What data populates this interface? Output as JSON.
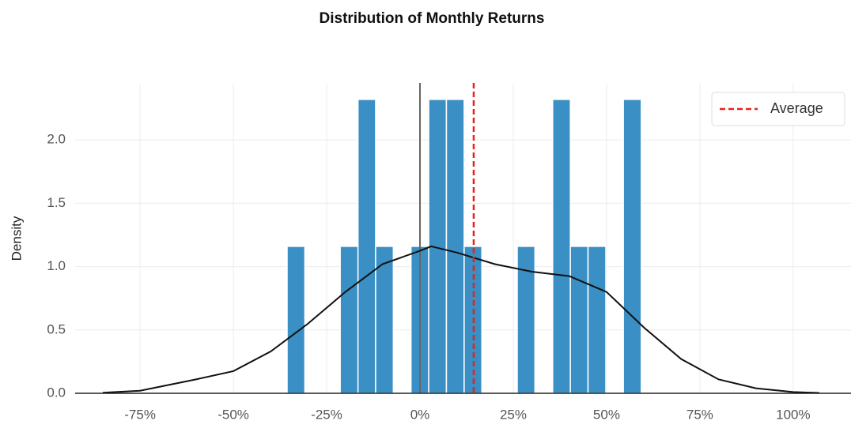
{
  "chart_data": {
    "type": "histogram",
    "title": "Distribution of Monthly Returns",
    "ylabel": "Density",
    "bins": [
      -35.6,
      -30.85,
      -26.1,
      -21.37,
      -16.6,
      -11.88,
      -7.14,
      -2.4,
      2.35,
      7.09,
      11.84,
      16.58,
      21.33,
      26.07,
      30.8,
      35.56,
      40.3,
      45.04,
      49.8,
      54.5,
      59.3
    ],
    "values": [
      1.16,
      0,
      0,
      1.16,
      2.32,
      1.16,
      0,
      1.16,
      2.32,
      2.32,
      1.16,
      0,
      0,
      1.16,
      0,
      2.32,
      1.16,
      1.16,
      0,
      2.32
    ],
    "color": "#3a8fc4",
    "kde": {
      "color": "#111111",
      "x": [
        -85,
        -75,
        -60,
        -50,
        -40,
        -30,
        -20,
        -10,
        0,
        3,
        10,
        20,
        30,
        40,
        50,
        60,
        70,
        80,
        90,
        100,
        107
      ],
      "y": [
        0.005,
        0.02,
        0.11,
        0.175,
        0.33,
        0.55,
        0.8,
        1.02,
        1.125,
        1.16,
        1.11,
        1.02,
        0.96,
        0.925,
        0.8,
        0.52,
        0.27,
        0.11,
        0.04,
        0.01,
        0.003
      ]
    },
    "average": {
      "label": "Average",
      "value": 14.4,
      "color": "#e8221b"
    },
    "zero_line": 0,
    "xlim": [
      -92.4,
      115.5
    ],
    "xticks": [
      {
        "value": -75,
        "label": "-75%"
      },
      {
        "value": -50,
        "label": "-50%"
      },
      {
        "value": -25,
        "label": "-25%"
      },
      {
        "value": 0,
        "label": "0%"
      },
      {
        "value": 25,
        "label": "25%"
      },
      {
        "value": 50,
        "label": "50%"
      },
      {
        "value": 75,
        "label": "75%"
      },
      {
        "value": 100,
        "label": "100%"
      }
    ],
    "ylim": [
      0,
      2.45
    ],
    "yticks": [
      {
        "value": 0,
        "label": "0.0"
      },
      0.5,
      {
        "value": 1,
        "label": "1.0"
      },
      1.5,
      {
        "value": 2,
        "label": "2.0"
      }
    ],
    "grid": true,
    "legend": "upper right"
  }
}
